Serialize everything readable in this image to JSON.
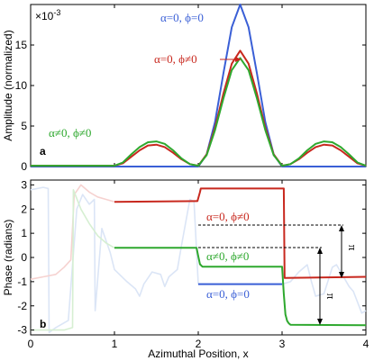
{
  "chart_data": [
    {
      "type": "line",
      "panel_label": "a",
      "ylabel": "Amplitude (normalized)",
      "exponent_label": "×10^-3",
      "exponent_base": "×10",
      "exponent_power": "-3",
      "xlim": [
        0,
        4
      ],
      "ylim": [
        0,
        20
      ],
      "yticks": [
        0,
        5,
        10,
        15
      ],
      "ytick_labels": [
        "0",
        "5",
        "10",
        "15"
      ],
      "series": [
        {
          "name": "α=0, ϕ=0",
          "color": "#3a5fd6",
          "x": [
            0.0,
            1.0,
            1.1,
            1.2,
            1.3,
            1.4,
            1.5,
            1.6,
            1.7,
            1.8,
            1.9,
            2.0,
            2.1,
            2.2,
            2.3,
            2.4,
            2.5,
            2.6,
            2.7,
            2.8,
            2.9,
            3.0,
            3.1,
            3.4,
            4.0
          ],
          "values": [
            0,
            0,
            0,
            0,
            0,
            0,
            0,
            0,
            0,
            0,
            0,
            0,
            1.5,
            5.5,
            11.5,
            17.2,
            20.0,
            17.2,
            11.5,
            5.5,
            1.5,
            0,
            0,
            0,
            0
          ]
        },
        {
          "name": "α=0, ϕ≠0",
          "color": "#c8281e",
          "x": [
            0.0,
            1.0,
            1.1,
            1.2,
            1.3,
            1.4,
            1.5,
            1.6,
            1.7,
            1.8,
            1.9,
            2.0,
            2.1,
            2.2,
            2.3,
            2.4,
            2.5,
            2.6,
            2.7,
            2.8,
            2.9,
            3.0,
            3.1,
            3.2,
            3.3,
            3.4,
            3.5,
            3.6,
            3.7,
            3.8,
            3.9,
            4.0
          ],
          "values": [
            0.1,
            0.1,
            0.4,
            1.2,
            2.0,
            2.6,
            2.7,
            2.4,
            1.7,
            0.9,
            0.3,
            0.1,
            1.5,
            4.8,
            9.0,
            12.7,
            14.3,
            12.7,
            9.0,
            4.8,
            1.5,
            0.1,
            0.3,
            0.9,
            1.7,
            2.4,
            2.7,
            2.6,
            2.0,
            1.2,
            0.4,
            0.1
          ]
        },
        {
          "name": "α≠0, ϕ≠0",
          "color": "#2ea82e",
          "x": [
            0.0,
            1.0,
            1.1,
            1.2,
            1.3,
            1.4,
            1.5,
            1.6,
            1.7,
            1.8,
            1.9,
            2.0,
            2.1,
            2.2,
            2.3,
            2.4,
            2.5,
            2.6,
            2.7,
            2.8,
            2.9,
            3.0,
            3.1,
            3.2,
            3.3,
            3.4,
            3.5,
            3.6,
            3.7,
            3.8,
            3.9,
            4.0
          ],
          "values": [
            0.1,
            0.1,
            0.5,
            1.5,
            2.4,
            3.0,
            3.1,
            2.8,
            2.0,
            1.0,
            0.3,
            0.1,
            1.4,
            4.5,
            8.4,
            11.9,
            13.4,
            11.9,
            8.4,
            4.5,
            1.4,
            0.1,
            0.3,
            1.0,
            2.0,
            2.8,
            3.1,
            3.0,
            2.4,
            1.5,
            0.5,
            0.1
          ]
        }
      ],
      "annotations": [
        {
          "text": "α=0,  ϕ=0",
          "color": "#3a5fd6"
        },
        {
          "text": "α=0,  ϕ≠0",
          "color": "#c8281e"
        },
        {
          "text": "α≠0,  ϕ≠0",
          "color": "#2ea82e"
        }
      ]
    },
    {
      "type": "line",
      "panel_label": "b",
      "xlabel": "Azimuthal Position, x",
      "ylabel": "Phase (radians)",
      "xlim": [
        0,
        4
      ],
      "ylim": [
        -3.2,
        3.2
      ],
      "xticks": [
        0,
        1,
        2,
        3,
        4
      ],
      "xtick_labels": [
        "0",
        "1",
        "2",
        "3",
        "4"
      ],
      "yticks": [
        -3,
        -2,
        -1,
        0,
        1,
        2,
        3
      ],
      "ytick_labels": [
        "-3",
        "-2",
        "-1",
        "0",
        "1",
        "2",
        "3"
      ],
      "series": [
        {
          "name": "α=0, ϕ≠0",
          "color": "#c8281e",
          "x": [
            1.0,
            1.98,
            1.99,
            2.02,
            2.03,
            3.02,
            3.03,
            4.0
          ],
          "values": [
            2.3,
            2.33,
            2.33,
            2.7,
            2.85,
            2.85,
            -0.85,
            -0.8
          ]
        },
        {
          "name": "α≠0, ϕ≠0",
          "color": "#2ea82e",
          "x": [
            1.0,
            1.98,
            2.0,
            2.02,
            2.05,
            3.0,
            3.02,
            3.04,
            3.06,
            3.08,
            3.1,
            4.0
          ],
          "values": [
            0.4,
            0.4,
            0.05,
            -0.28,
            -0.38,
            -0.38,
            -1.5,
            -2.35,
            -2.62,
            -2.72,
            -2.78,
            -2.8
          ]
        },
        {
          "name": "α=0, ϕ=0",
          "color": "#3a5fd6",
          "x": [
            2.0,
            3.0
          ],
          "values": [
            -1.1,
            -1.1
          ]
        }
      ],
      "background_series": [
        {
          "color": "#dbe5f6",
          "x": [
            0.0,
            0.15,
            0.21,
            0.22,
            0.3,
            0.45,
            0.55,
            0.62,
            0.7,
            0.76,
            0.77,
            0.85,
            0.95,
            1.0,
            1.15,
            1.25,
            1.3,
            1.35,
            1.45,
            1.55,
            1.6,
            1.65,
            1.75,
            1.8,
            1.9,
            1.95,
            2.0,
            3.0,
            3.1,
            3.2,
            3.3,
            3.35,
            3.4,
            3.5,
            3.6,
            3.65,
            3.7,
            3.8,
            3.85,
            3.95,
            4.0
          ],
          "values": [
            2.8,
            2.9,
            2.85,
            -3.1,
            -2.9,
            -2.6,
            2.0,
            2.6,
            2.2,
            2.4,
            -2.2,
            1.2,
            0.2,
            -0.5,
            -1.0,
            -1.3,
            -1.6,
            -1.1,
            -0.6,
            -0.7,
            -1.2,
            -0.8,
            -0.5,
            0.5,
            2.4,
            2.3,
            -1.1,
            -1.1,
            -1.0,
            -0.6,
            -0.3,
            -1.0,
            -1.6,
            -1.5,
            -0.4,
            -0.3,
            -0.6,
            -1.2,
            -1.4,
            -2.3,
            -2.2
          ]
        },
        {
          "color": "#f6d2d0",
          "x": [
            0.0,
            0.15,
            0.3,
            0.4,
            0.48,
            0.52,
            0.56,
            0.6,
            0.7,
            0.8,
            0.9,
            1.0
          ],
          "values": [
            -0.9,
            -0.8,
            -0.7,
            -0.4,
            -0.1,
            2.6,
            2.8,
            3.0,
            2.7,
            2.5,
            2.4,
            2.3
          ]
        },
        {
          "color": "#d6efd2",
          "x": [
            0.0,
            0.2,
            0.4,
            0.5,
            0.51,
            0.6,
            0.7,
            0.8,
            0.9,
            1.0
          ],
          "values": [
            -3.0,
            -3.0,
            -3.0,
            -2.9,
            2.8,
            2.0,
            1.4,
            0.9,
            0.6,
            0.4
          ]
        }
      ],
      "annotations": [
        {
          "text": "α=0,  ϕ≠0",
          "color": "#c8281e"
        },
        {
          "text": "α≠0,  ϕ≠0",
          "color": "#2ea82e"
        },
        {
          "text": "α=0,  ϕ=0",
          "color": "#3a5fd6"
        },
        {
          "text": "π",
          "color": "#000000"
        },
        {
          "text": "π",
          "color": "#000000"
        }
      ]
    }
  ]
}
